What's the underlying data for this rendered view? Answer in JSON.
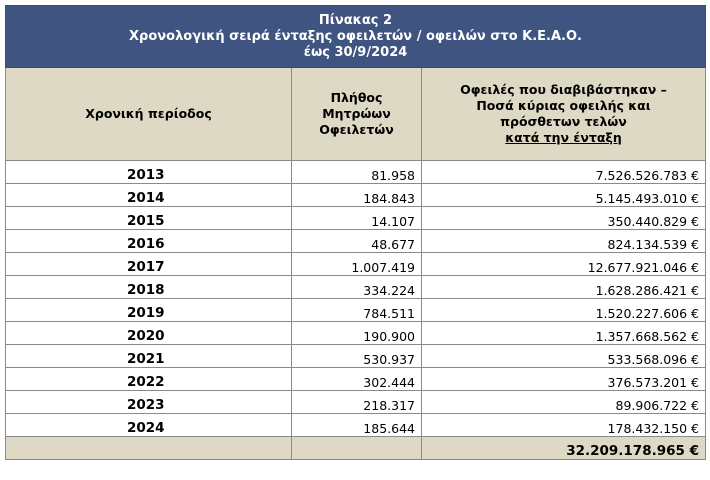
{
  "title": {
    "line1": "Πίνακας 2",
    "line2": "Χρονολογική σειρά ένταξης οφειλετών / οφειλών στο Κ.Ε.Α.Ο.",
    "line3": "έως 30/9/2024"
  },
  "headers": {
    "col1": "Χρονική περίοδος",
    "col2_line1": "Πλήθος",
    "col2_line2": "Μητρώων",
    "col2_line3": "Οφειλετών",
    "col3_line1": "Οφειλές που διαβιβάστηκαν –",
    "col3_line2": "Ποσά κύριας οφειλής και",
    "col3_line3": "πρόσθετων τελών",
    "col3_line4": "κατά την ένταξη"
  },
  "rows": [
    {
      "year": "2013",
      "count": "81.958",
      "amount": "7.526.526.783 €"
    },
    {
      "year": "2014",
      "count": "184.843",
      "amount": "5.145.493.010 €"
    },
    {
      "year": "2015",
      "count": "14.107",
      "amount": "350.440.829 €"
    },
    {
      "year": "2016",
      "count": "48.677",
      "amount": "824.134.539 €"
    },
    {
      "year": "2017",
      "count": "1.007.419",
      "amount": "12.677.921.046 €"
    },
    {
      "year": "2018",
      "count": "334.224",
      "amount": "1.628.286.421 €"
    },
    {
      "year": "2019",
      "count": "784.511",
      "amount": "1.520.227.606 €"
    },
    {
      "year": "2020",
      "count": "190.900",
      "amount": "1.357.668.562 €"
    },
    {
      "year": "2021",
      "count": "530.937",
      "amount": "533.568.096 €"
    },
    {
      "year": "2022",
      "count": "302.444",
      "amount": "376.573.201 €"
    },
    {
      "year": "2023",
      "count": "218.317",
      "amount": "89.906.722 €"
    },
    {
      "year": "2024",
      "count": "185.644",
      "amount": "178.432.150 €"
    }
  ],
  "total": {
    "amount": "32.209.178.965 €"
  },
  "colors": {
    "title_bg": "#3f5480",
    "header_bg": "#ddd9c4",
    "border": "#8a8a8a"
  }
}
